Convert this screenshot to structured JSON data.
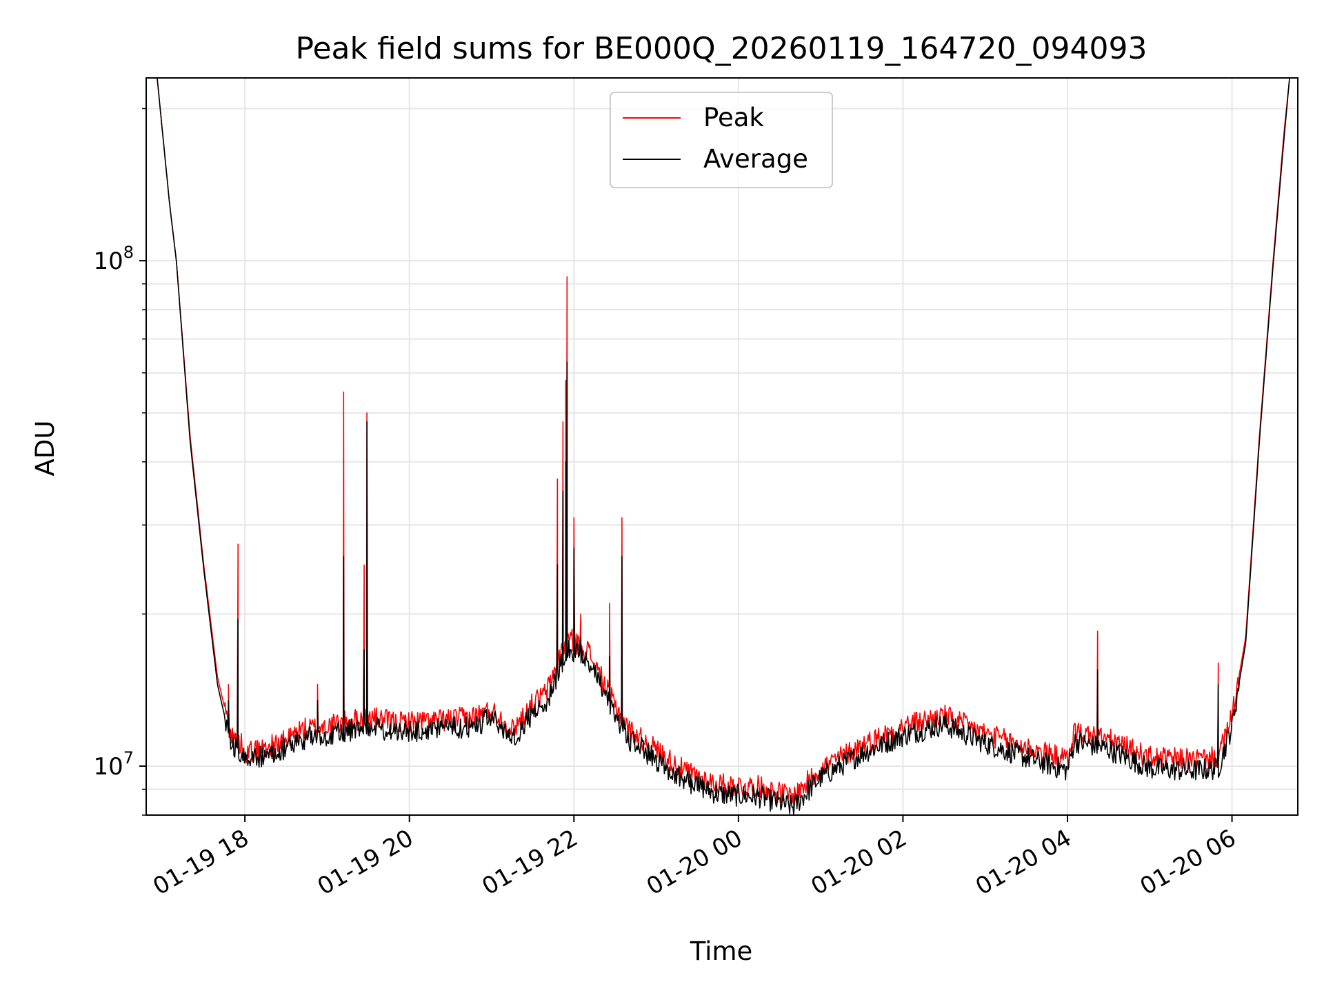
{
  "chart_data": {
    "type": "line",
    "title": "Peak field sums for BE000Q_20260119_164720_094093",
    "xlabel": "Time",
    "ylabel": "ADU",
    "yscale": "log",
    "xlim": [
      "2026-01-19 16:48",
      "2026-01-20 06:48"
    ],
    "ylim": [
      8000000,
      230000000
    ],
    "x_ticks": [
      {
        "value": "2026-01-19 18:00",
        "label": "01-19 18"
      },
      {
        "value": "2026-01-19 20:00",
        "label": "01-19 20"
      },
      {
        "value": "2026-01-19 22:00",
        "label": "01-19 22"
      },
      {
        "value": "2026-01-20 00:00",
        "label": "01-20 00"
      },
      {
        "value": "2026-01-20 02:00",
        "label": "01-20 02"
      },
      {
        "value": "2026-01-20 04:00",
        "label": "01-20 04"
      },
      {
        "value": "2026-01-20 06:00",
        "label": "01-20 06"
      }
    ],
    "y_ticks": [
      {
        "value": 10000000,
        "base": "10",
        "exp": "7"
      },
      {
        "value": 100000000,
        "base": "10",
        "exp": "8"
      }
    ],
    "grid": true,
    "legend_position": "top-center",
    "series": [
      {
        "name": "Peak",
        "color": "#ff0000",
        "points": [
          [
            "2026-01-19 16:56",
            230000000
          ],
          [
            "2026-01-19 17:05",
            130000000
          ],
          [
            "2026-01-19 17:10",
            100000000
          ],
          [
            "2026-01-19 17:20",
            45000000
          ],
          [
            "2026-01-19 17:30",
            25000000
          ],
          [
            "2026-01-19 17:40",
            15000000
          ],
          [
            "2026-01-19 17:50",
            11500000
          ],
          [
            "2026-01-19 17:58",
            11000000
          ],
          [
            "2026-01-19 18:00",
            10600000
          ],
          [
            "2026-01-19 18:30",
            11200000
          ],
          [
            "2026-01-19 18:40",
            11800000
          ],
          [
            "2026-01-19 19:00",
            12000000
          ],
          [
            "2026-01-19 19:30",
            12500000
          ],
          [
            "2026-01-19 19:50",
            12200000
          ],
          [
            "2026-01-19 20:20",
            12300000
          ],
          [
            "2026-01-19 20:45",
            12500000
          ],
          [
            "2026-01-19 21:00",
            12900000
          ],
          [
            "2026-01-19 21:15",
            11800000
          ],
          [
            "2026-01-19 21:30",
            13300000
          ],
          [
            "2026-01-19 21:40",
            14000000
          ],
          [
            "2026-01-19 21:55",
            18000000
          ],
          [
            "2026-01-19 22:10",
            17000000
          ],
          [
            "2026-01-19 22:25",
            14000000
          ],
          [
            "2026-01-19 22:40",
            11800000
          ],
          [
            "2026-01-19 23:00",
            10800000
          ],
          [
            "2026-01-19 23:20",
            9800000
          ],
          [
            "2026-01-19 23:45",
            9200000
          ],
          [
            "2026-01-20 00:15",
            9100000
          ],
          [
            "2026-01-20 00:40",
            8700000
          ],
          [
            "2026-01-20 01:00",
            9900000
          ],
          [
            "2026-01-20 01:30",
            11000000
          ],
          [
            "2026-01-20 02:00",
            12000000
          ],
          [
            "2026-01-20 02:30",
            12600000
          ],
          [
            "2026-01-20 03:00",
            11600000
          ],
          [
            "2026-01-20 03:30",
            10900000
          ],
          [
            "2026-01-20 04:00",
            10300000
          ],
          [
            "2026-01-20 04:05",
            11700000
          ],
          [
            "2026-01-20 04:30",
            11300000
          ],
          [
            "2026-01-20 05:00",
            10400000
          ],
          [
            "2026-01-20 05:30",
            10300000
          ],
          [
            "2026-01-20 05:50",
            10400000
          ],
          [
            "2026-01-20 06:00",
            12500000
          ],
          [
            "2026-01-20 06:10",
            18000000
          ],
          [
            "2026-01-20 06:20",
            45000000
          ],
          [
            "2026-01-20 06:30",
            100000000
          ],
          [
            "2026-01-20 06:38",
            180000000
          ],
          [
            "2026-01-20 06:42",
            230000000
          ]
        ],
        "spikes": [
          [
            "2026-01-19 17:48",
            14500000
          ],
          [
            "2026-01-19 17:55",
            27500000
          ],
          [
            "2026-01-19 18:53",
            14500000
          ],
          [
            "2026-01-19 19:12",
            55000000
          ],
          [
            "2026-01-19 19:27",
            25000000
          ],
          [
            "2026-01-19 19:29",
            50000000
          ],
          [
            "2026-01-19 21:48",
            37000000
          ],
          [
            "2026-01-19 21:52",
            48000000
          ],
          [
            "2026-01-19 21:54",
            58000000
          ],
          [
            "2026-01-19 21:55",
            93000000
          ],
          [
            "2026-01-19 22:00",
            31000000
          ],
          [
            "2026-01-19 22:05",
            20000000
          ],
          [
            "2026-01-19 22:26",
            21000000
          ],
          [
            "2026-01-19 22:35",
            31000000
          ],
          [
            "2026-01-20 04:22",
            18500000
          ],
          [
            "2026-01-20 05:50",
            16000000
          ]
        ]
      },
      {
        "name": "Average",
        "color": "#000000",
        "points": [
          [
            "2026-01-19 16:56",
            230000000
          ],
          [
            "2026-01-19 17:05",
            130000000
          ],
          [
            "2026-01-19 17:10",
            100000000
          ],
          [
            "2026-01-19 17:20",
            44000000
          ],
          [
            "2026-01-19 17:30",
            24500000
          ],
          [
            "2026-01-19 17:40",
            14500000
          ],
          [
            "2026-01-19 17:50",
            11000000
          ],
          [
            "2026-01-19 17:58",
            10500000
          ],
          [
            "2026-01-19 18:00",
            10200000
          ],
          [
            "2026-01-19 18:30",
            10800000
          ],
          [
            "2026-01-19 18:40",
            11300000
          ],
          [
            "2026-01-19 19:00",
            11500000
          ],
          [
            "2026-01-19 19:30",
            12000000
          ],
          [
            "2026-01-19 19:50",
            11700000
          ],
          [
            "2026-01-19 20:20",
            11800000
          ],
          [
            "2026-01-19 20:45",
            12000000
          ],
          [
            "2026-01-19 21:00",
            12400000
          ],
          [
            "2026-01-19 21:15",
            11300000
          ],
          [
            "2026-01-19 21:30",
            12700000
          ],
          [
            "2026-01-19 21:40",
            13400000
          ],
          [
            "2026-01-19 21:55",
            17000000
          ],
          [
            "2026-01-19 22:10",
            16300000
          ],
          [
            "2026-01-19 22:25",
            13400000
          ],
          [
            "2026-01-19 22:40",
            11300000
          ],
          [
            "2026-01-19 23:00",
            10300000
          ],
          [
            "2026-01-19 23:20",
            9400000
          ],
          [
            "2026-01-19 23:45",
            8800000
          ],
          [
            "2026-01-20 00:15",
            8700000
          ],
          [
            "2026-01-20 00:40",
            8300000
          ],
          [
            "2026-01-20 01:00",
            9500000
          ],
          [
            "2026-01-20 01:30",
            10600000
          ],
          [
            "2026-01-20 02:00",
            11500000
          ],
          [
            "2026-01-20 02:30",
            12100000
          ],
          [
            "2026-01-20 03:00",
            11100000
          ],
          [
            "2026-01-20 03:30",
            10400000
          ],
          [
            "2026-01-20 04:00",
            9800000
          ],
          [
            "2026-01-20 04:05",
            11200000
          ],
          [
            "2026-01-20 04:30",
            10800000
          ],
          [
            "2026-01-20 05:00",
            9900000
          ],
          [
            "2026-01-20 05:30",
            9800000
          ],
          [
            "2026-01-20 05:50",
            9900000
          ],
          [
            "2026-01-20 06:00",
            12000000
          ],
          [
            "2026-01-20 06:10",
            17500000
          ],
          [
            "2026-01-20 06:20",
            44000000
          ],
          [
            "2026-01-20 06:30",
            98000000
          ],
          [
            "2026-01-20 06:38",
            175000000
          ],
          [
            "2026-01-20 06:42",
            230000000
          ]
        ],
        "spikes": [
          [
            "2026-01-19 17:48",
            13500000
          ],
          [
            "2026-01-19 17:55",
            19500000
          ],
          [
            "2026-01-19 18:53",
            13500000
          ],
          [
            "2026-01-19 19:12",
            26000000
          ],
          [
            "2026-01-19 19:27",
            17000000
          ],
          [
            "2026-01-19 19:29",
            48000000
          ],
          [
            "2026-01-19 21:48",
            25000000
          ],
          [
            "2026-01-19 21:52",
            35000000
          ],
          [
            "2026-01-19 21:54",
            40000000
          ],
          [
            "2026-01-19 21:55",
            63000000
          ],
          [
            "2026-01-19 22:00",
            27000000
          ],
          [
            "2026-01-19 22:05",
            18000000
          ],
          [
            "2026-01-19 22:26",
            16500000
          ],
          [
            "2026-01-19 22:35",
            26000000
          ],
          [
            "2026-01-20 04:22",
            15500000
          ],
          [
            "2026-01-20 05:50",
            14500000
          ]
        ]
      }
    ]
  }
}
